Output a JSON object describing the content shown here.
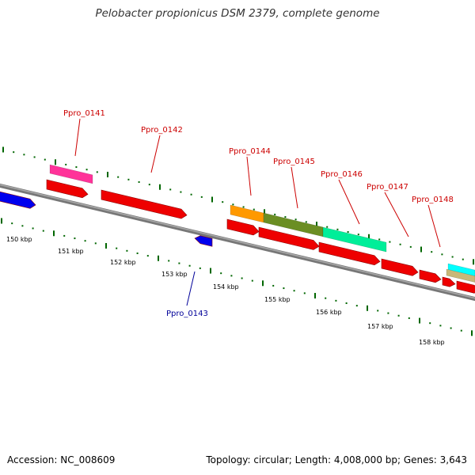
{
  "title": "Pelobacter propionicus DSM 2379, complete genome",
  "footer": {
    "accession": "Accession: NC_008609",
    "summary": "Topology: circular; Length: 4,008,000 bp; Genes: 3,643"
  },
  "colors": {
    "label_forward": "#cc0000",
    "label_reverse": "#000099",
    "backbone": "#888888",
    "tick": "#006600",
    "cds": "#ee0000",
    "cds_reverse": "#0000ee"
  },
  "scale_labels": [
    "150 kbp",
    "151 kbp",
    "152 kbp",
    "153 kbp",
    "154 kbp",
    "155 kbp",
    "156 kbp",
    "157 kbp",
    "158 kbp"
  ],
  "gene_labels": [
    {
      "name": "Ppro_0141",
      "strand": "forward"
    },
    {
      "name": "Ppro_0142",
      "strand": "forward"
    },
    {
      "name": "Ppro_0143",
      "strand": "reverse"
    },
    {
      "name": "Ppro_0144",
      "strand": "forward"
    },
    {
      "name": "Ppro_0145",
      "strand": "forward"
    },
    {
      "name": "Ppro_0146",
      "strand": "forward"
    },
    {
      "name": "Ppro_0147",
      "strand": "forward"
    },
    {
      "name": "Ppro_0148",
      "strand": "forward"
    }
  ],
  "feature_colors": [
    "#ff3399",
    "#ff9900",
    "#6b8e23",
    "#00ee99",
    "#00ffff",
    "#c8b878"
  ]
}
